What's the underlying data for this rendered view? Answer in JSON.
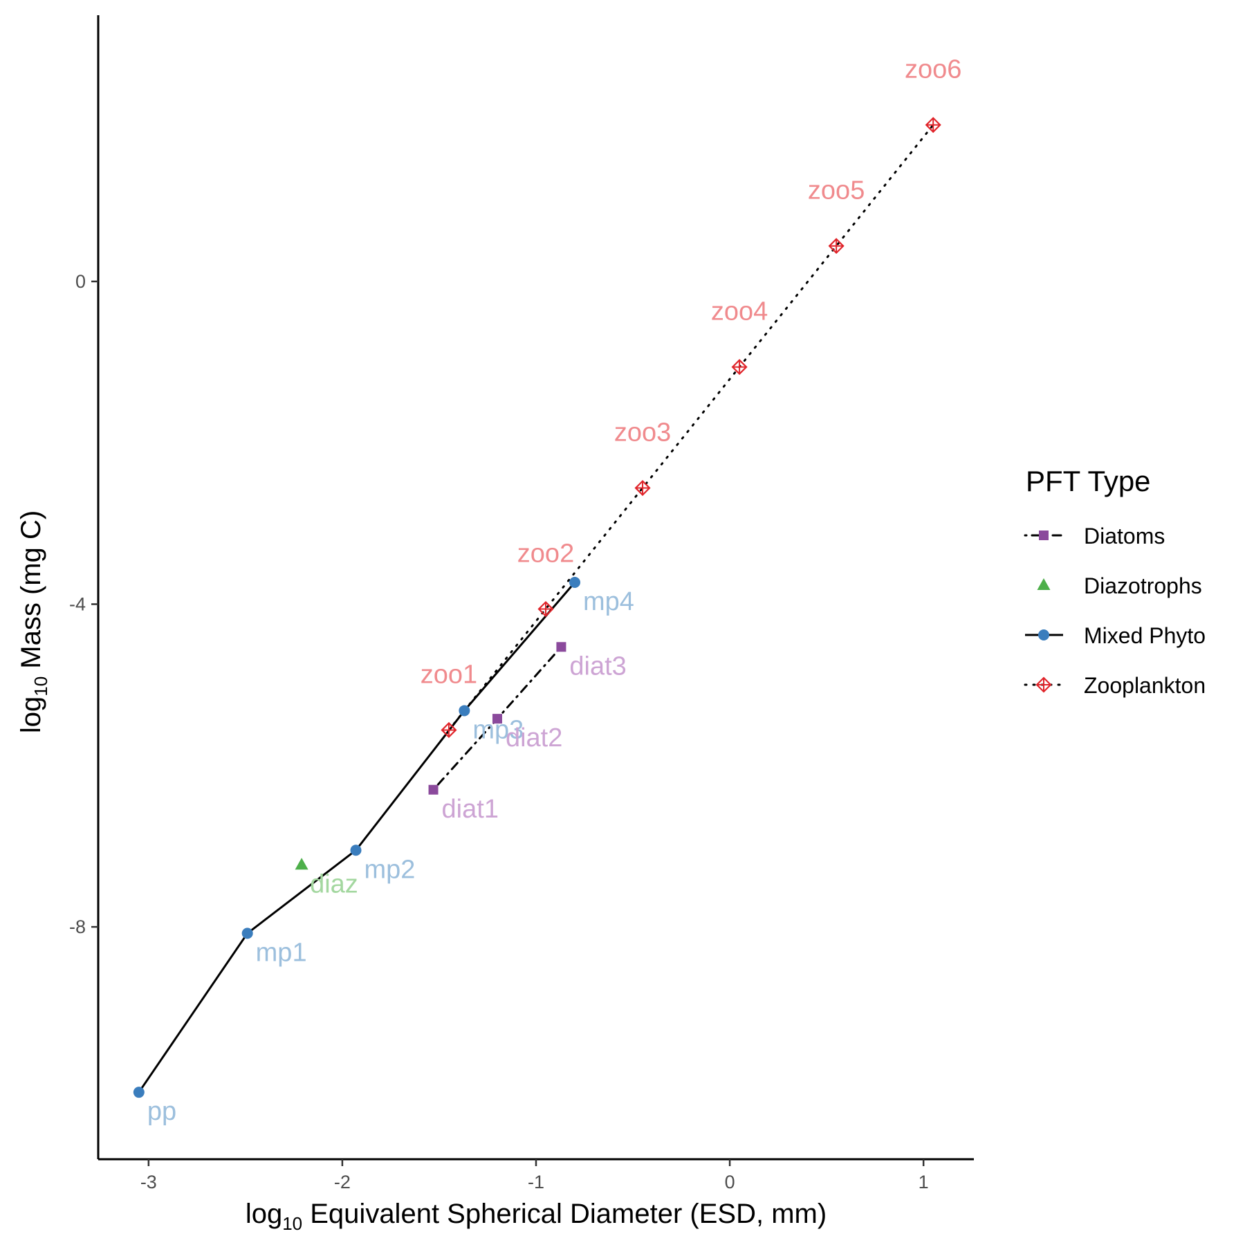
{
  "chart_data": {
    "type": "scatter",
    "title": "",
    "xlabel": {
      "prefix": "log",
      "sub": "10",
      "rest": " Equivalent Spherical Diameter (ESD, mm)"
    },
    "ylabel": {
      "prefix": "log",
      "sub": "10",
      "rest": " Mass (mg C)"
    },
    "xlim": [
      -3.26,
      1.26
    ],
    "ylim": [
      -10.88,
      3.3
    ],
    "x_ticks": [
      {
        "value": -3,
        "label": "-3"
      },
      {
        "value": -2,
        "label": "-2"
      },
      {
        "value": -1,
        "label": "-1"
      },
      {
        "value": 0,
        "label": "0"
      },
      {
        "value": 1,
        "label": "1"
      }
    ],
    "y_ticks": [
      {
        "value": 0,
        "label": "0"
      },
      {
        "value": -4,
        "label": "-4"
      },
      {
        "value": -8,
        "label": "-8"
      }
    ],
    "grid": false,
    "legend": {
      "title": "PFT Type",
      "position": "right",
      "entries": [
        "Diatoms",
        "Diazotrophs",
        "Mixed Phyto",
        "Zooplankton"
      ]
    },
    "series": [
      {
        "name": "Mixed Phyto",
        "marker": "circle",
        "line": "solid",
        "color": "#3a7dbd",
        "label_color": "#9cbfdd",
        "points": [
          {
            "label": "pp",
            "x": -3.05,
            "y": -10.05
          },
          {
            "label": "mp1",
            "x": -2.49,
            "y": -8.08
          },
          {
            "label": "mp2",
            "x": -1.93,
            "y": -7.05
          },
          {
            "label": "mp3",
            "x": -1.37,
            "y": -5.32
          },
          {
            "label": "mp4",
            "x": -0.8,
            "y": -3.73
          }
        ]
      },
      {
        "name": "Diazotrophs",
        "marker": "triangle",
        "line": "none",
        "color": "#4daf4a",
        "label_color": "#a3d79f",
        "points": [
          {
            "label": "diaz",
            "x": -2.21,
            "y": -7.23
          }
        ]
      },
      {
        "name": "Diatoms",
        "marker": "square",
        "line": "dotdash",
        "color": "#8b4a9c",
        "label_color": "#cda4d4",
        "points": [
          {
            "label": "diat1",
            "x": -1.53,
            "y": -6.3
          },
          {
            "label": "diat2",
            "x": -1.2,
            "y": -5.42
          },
          {
            "label": "diat3",
            "x": -0.87,
            "y": -4.53
          }
        ]
      },
      {
        "name": "Zooplankton",
        "marker": "diamond-plus",
        "line": "dotted",
        "color": "#e0242a",
        "label_color": "#f08a8d",
        "points": [
          {
            "label": "zoo1",
            "x": -1.45,
            "y": -5.56
          },
          {
            "label": "zoo2",
            "x": -0.95,
            "y": -4.06
          },
          {
            "label": "zoo3",
            "x": -0.45,
            "y": -2.56
          },
          {
            "label": "zoo4",
            "x": 0.05,
            "y": -1.06
          },
          {
            "label": "zoo5",
            "x": 0.55,
            "y": 0.44
          },
          {
            "label": "zoo6",
            "x": 1.05,
            "y": 1.94
          }
        ]
      }
    ]
  }
}
